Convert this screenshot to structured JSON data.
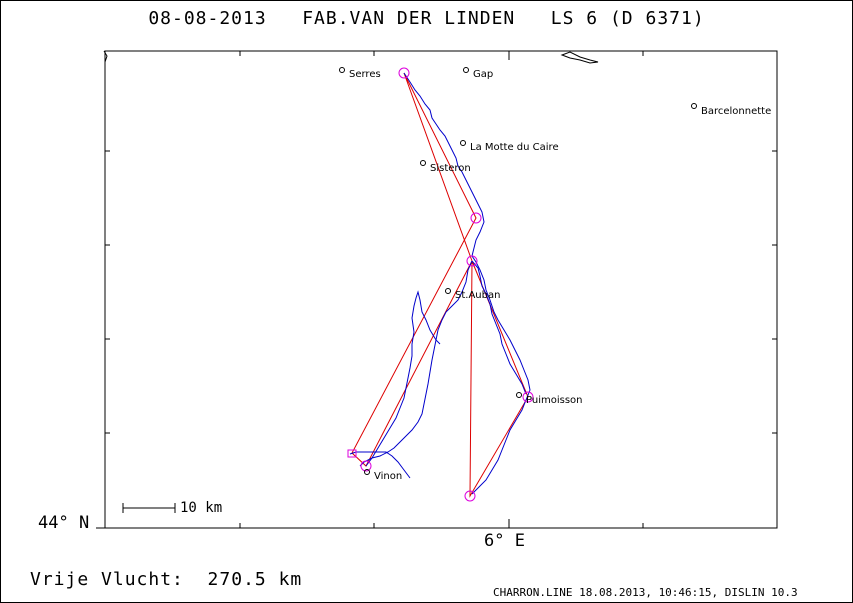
{
  "title": "08-08-2013   FAB.VAN DER LINDEN   LS 6 (D 6371)",
  "axis": {
    "lat_label": "44° N",
    "lon_label": "6° E"
  },
  "scale_bar": {
    "label": "10 km"
  },
  "distance_text": "Vrije Vlucht:  270.5 km",
  "footer": "CHARRON.LINE 18.08.2013, 10:46:15, DISLIN 10.3",
  "colors": {
    "track": "#0000cc",
    "task_line": "#dd0000",
    "turnpoint": "#dd00dd",
    "frame": "#000000"
  },
  "places": [
    {
      "id": "serres",
      "name": "Serres"
    },
    {
      "id": "gap",
      "name": "Gap"
    },
    {
      "id": "barcelonnette",
      "name": "Barcelonnette"
    },
    {
      "id": "la-motte-du-caire",
      "name": "La Motte du Caire"
    },
    {
      "id": "sisteron",
      "name": "Sisteron"
    },
    {
      "id": "st-auban",
      "name": "St.Auban"
    },
    {
      "id": "puimoisson",
      "name": "Puimoisson"
    },
    {
      "id": "vinon",
      "name": "Vinon"
    }
  ]
}
